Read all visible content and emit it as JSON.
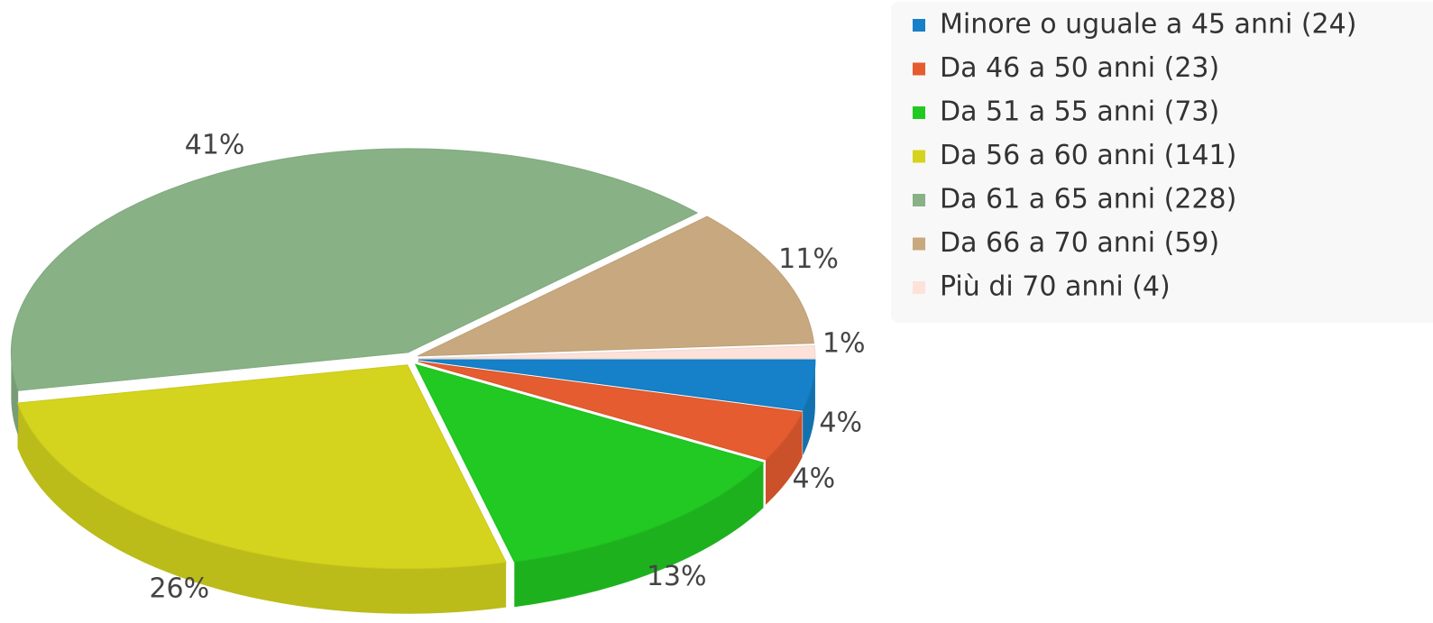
{
  "chart_data": {
    "type": "pie",
    "categories": [
      "Minore o uguale a 45 anni (24)",
      "Da 46 a 50 anni (23)",
      "Da 51 a 55 anni (73)",
      "Da 56 a 60 anni (141)",
      "Da 61 a 65 anni (228)",
      "Da 66 a 70 anni (59)",
      "Più di 70 anni (4)"
    ],
    "values": [
      4,
      4,
      13,
      26,
      41,
      11,
      1
    ],
    "value_labels": [
      "4%",
      "4%",
      "13%",
      "26%",
      "41%",
      "11%",
      "1%"
    ],
    "colors": [
      "#1680c8",
      "#e55c30",
      "#22c922",
      "#d4d41e",
      "#88b286",
      "#c8a87e",
      "#fde2da"
    ],
    "legend": "top-right"
  }
}
